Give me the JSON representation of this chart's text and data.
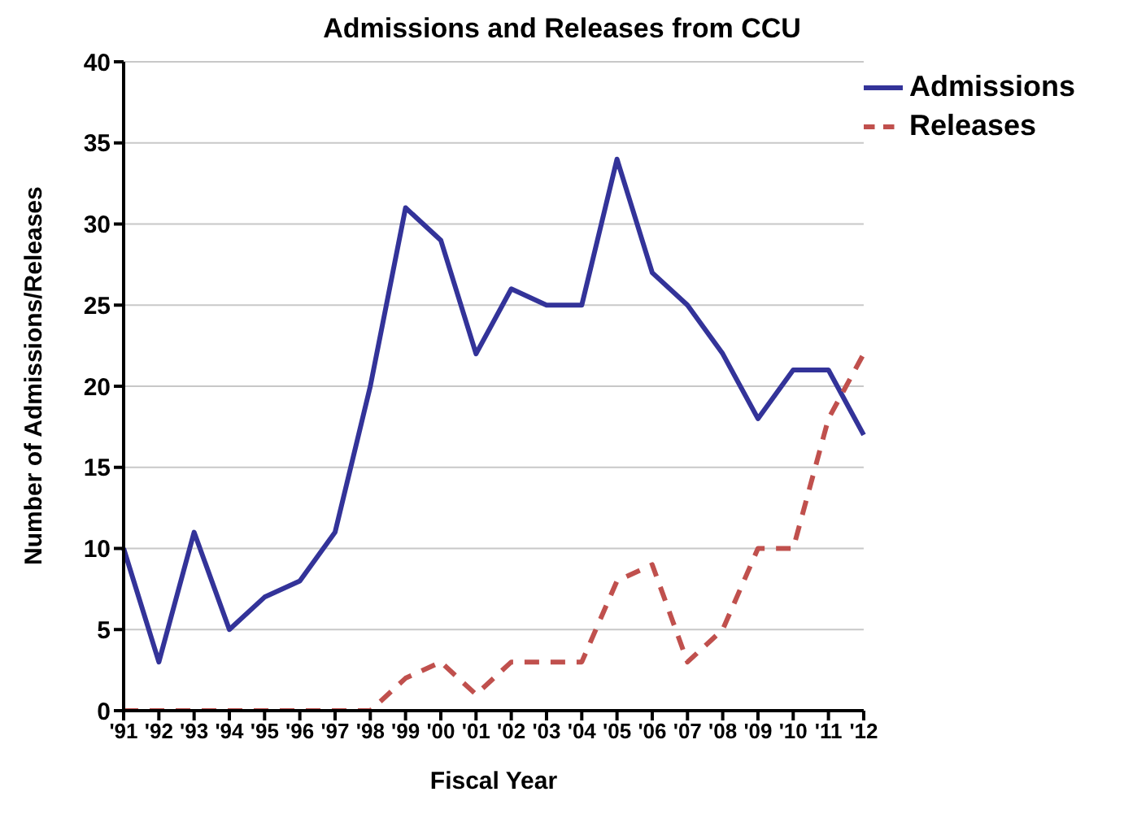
{
  "chart_data": {
    "type": "line",
    "title": "Admissions and Releases from CCU",
    "xlabel": "Fiscal Year",
    "ylabel": "Number of Admissions/Releases",
    "categories": [
      "'91",
      "'92",
      "'93",
      "'94",
      "'95",
      "'96",
      "'97",
      "'98",
      "'99",
      "'00",
      "'01",
      "'02",
      "'03",
      "'04",
      "'05",
      "'06",
      "'07",
      "'08",
      "'09",
      "'10",
      "'11",
      "'12"
    ],
    "series": [
      {
        "name": "Admissions",
        "color": "#333399",
        "line_style": "solid",
        "values": [
          10,
          3,
          11,
          5,
          7,
          8,
          11,
          20,
          31,
          29,
          22,
          26,
          25,
          25,
          34,
          27,
          25,
          22,
          18,
          21,
          21,
          17
        ]
      },
      {
        "name": "Releases",
        "color": "#c0504d",
        "line_style": "dashed",
        "values": [
          0,
          0,
          0,
          0,
          0,
          0,
          0,
          0,
          2,
          3,
          1,
          3,
          3,
          3,
          8,
          9,
          3,
          5,
          10,
          10,
          18,
          22
        ]
      }
    ],
    "ylim": [
      0,
      40
    ],
    "yticks": [
      0,
      5,
      10,
      15,
      20,
      25,
      30,
      35,
      40
    ],
    "grid": "y",
    "legend": "top right",
    "marker": "none"
  }
}
